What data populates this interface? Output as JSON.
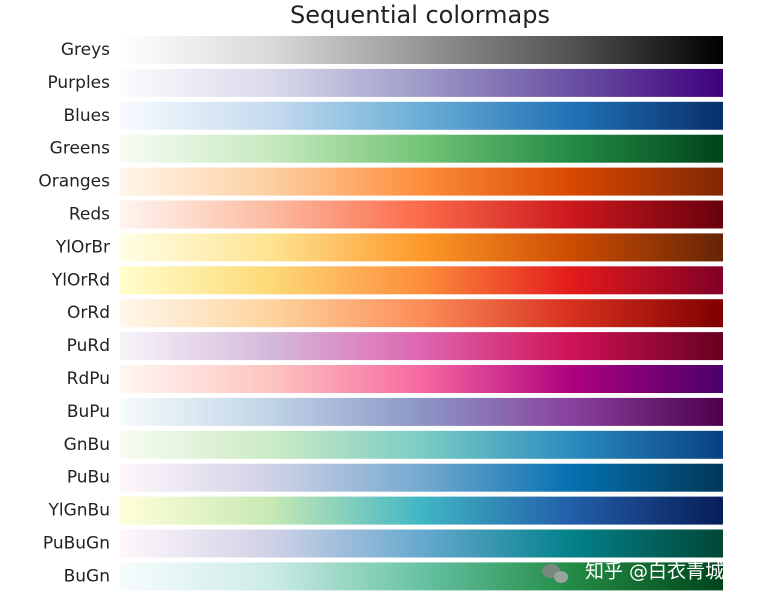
{
  "title": "Sequential colormaps",
  "colormaps": [
    {
      "name": "Greys",
      "colors": [
        "#ffffff",
        "#d9d9d9",
        "#969696",
        "#525252",
        "#000000"
      ]
    },
    {
      "name": "Purples",
      "colors": [
        "#fcfbfd",
        "#dadaeb",
        "#9e9ac8",
        "#6a51a3",
        "#3f007d"
      ]
    },
    {
      "name": "Blues",
      "colors": [
        "#f7fbff",
        "#c6dbef",
        "#6baed6",
        "#2171b5",
        "#08306b"
      ]
    },
    {
      "name": "Greens",
      "colors": [
        "#f7fcf5",
        "#c7e9c0",
        "#74c476",
        "#238b45",
        "#00441b"
      ]
    },
    {
      "name": "Oranges",
      "colors": [
        "#fff5eb",
        "#fdd0a2",
        "#fd8d3c",
        "#d94801",
        "#7f2704"
      ]
    },
    {
      "name": "Reds",
      "colors": [
        "#fff5f0",
        "#fcbba1",
        "#fb6a4a",
        "#cb181d",
        "#67000d"
      ]
    },
    {
      "name": "YlOrBr",
      "colors": [
        "#ffffe5",
        "#fee391",
        "#fe9929",
        "#cc4c02",
        "#662506"
      ]
    },
    {
      "name": "YlOrRd",
      "colors": [
        "#ffffcc",
        "#fed976",
        "#fd8d3c",
        "#e31a1c",
        "#800026"
      ]
    },
    {
      "name": "OrRd",
      "colors": [
        "#fff7ec",
        "#fdd49e",
        "#fc8d59",
        "#d7301f",
        "#7f0000"
      ]
    },
    {
      "name": "PuRd",
      "colors": [
        "#f7f4f9",
        "#d4b9da",
        "#df65b0",
        "#ce1256",
        "#67001f"
      ]
    },
    {
      "name": "RdPu",
      "colors": [
        "#fff7f3",
        "#fcc5c0",
        "#f768a1",
        "#ae017e",
        "#49006a"
      ]
    },
    {
      "name": "BuPu",
      "colors": [
        "#f7fcfd",
        "#bfd3e6",
        "#8c96c6",
        "#88419d",
        "#4d004b"
      ]
    },
    {
      "name": "GnBu",
      "colors": [
        "#f7fcf0",
        "#ccebc5",
        "#7bccc4",
        "#2b8cbe",
        "#084081"
      ]
    },
    {
      "name": "PuBu",
      "colors": [
        "#fff7fb",
        "#d0d1e6",
        "#74a9cf",
        "#0570b0",
        "#023858"
      ]
    },
    {
      "name": "YlGnBu",
      "colors": [
        "#ffffd9",
        "#c7e9b4",
        "#41b6c4",
        "#225ea8",
        "#081d58"
      ]
    },
    {
      "name": "PuBuGn",
      "colors": [
        "#fff7fb",
        "#d0d1e6",
        "#67a9cf",
        "#02818a",
        "#014636"
      ]
    },
    {
      "name": "BuGn",
      "colors": [
        "#f7fcfd",
        "#ccece6",
        "#66c2a4",
        "#238b45",
        "#00441b"
      ]
    }
  ],
  "watermark": "知乎 @白衣青城"
}
